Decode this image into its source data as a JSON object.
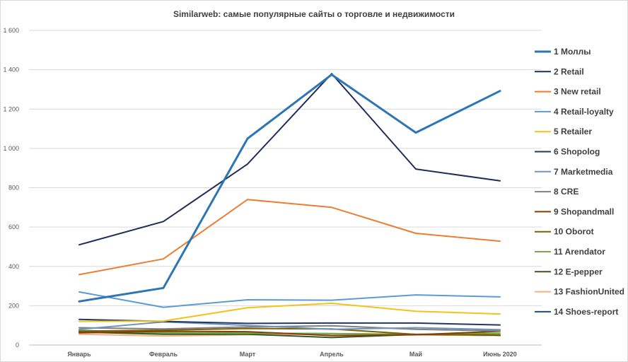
{
  "chart_data": {
    "type": "line",
    "title": "Similarweb: самые популярные сайты о торговле и недвижимости",
    "xlabel": "",
    "ylabel": "",
    "ylim": [
      0,
      1600
    ],
    "yticks": [
      0,
      200,
      400,
      600,
      800,
      1000,
      1200,
      1400,
      1600
    ],
    "ytick_labels": [
      "0",
      "200",
      "400",
      "600",
      "800",
      "1 000",
      "1 200",
      "1 400",
      "1 600"
    ],
    "categories": [
      "Январь",
      "Февраль",
      "Март",
      "Апрель",
      "Май",
      "Июнь 2020"
    ],
    "legend_position": "right",
    "grid": true,
    "series": [
      {
        "name": "1 Моллы",
        "color": "#2e75b6",
        "thick": true,
        "values": [
          222,
          290,
          1050,
          1375,
          1080,
          1292
        ]
      },
      {
        "name": "2 Retail",
        "color": "#1f2d5a",
        "thick": false,
        "values": [
          510,
          628,
          920,
          1380,
          895,
          835
        ]
      },
      {
        "name": "3 New retail",
        "color": "#ed7d31",
        "thick": false,
        "values": [
          358,
          438,
          740,
          700,
          568,
          528
        ]
      },
      {
        "name": "4 Retail-loyalty",
        "color": "#5b9bd5",
        "thick": false,
        "values": [
          270,
          192,
          230,
          228,
          255,
          245
        ]
      },
      {
        "name": "5 Retailer",
        "color": "#f2c318",
        "thick": false,
        "values": [
          120,
          122,
          190,
          212,
          172,
          158
        ]
      },
      {
        "name": "6 Shopolog",
        "color": "#203864",
        "thick": false,
        "values": [
          130,
          120,
          110,
          112,
          112,
          102
        ]
      },
      {
        "name": "7 Marketmedia",
        "color": "#6f95bd",
        "thick": false,
        "values": [
          80,
          118,
          100,
          80,
          88,
          78
        ]
      },
      {
        "name": "8 CRE",
        "color": "#7f7f7f",
        "thick": false,
        "values": [
          88,
          82,
          92,
          98,
          80,
          72
        ]
      },
      {
        "name": "9 Shopandmall",
        "color": "#843c0c",
        "thick": false,
        "values": [
          62,
          70,
          68,
          48,
          52,
          70
        ]
      },
      {
        "name": "10 Oborot",
        "color": "#7f6000",
        "thick": false,
        "values": [
          70,
          76,
          84,
          82,
          54,
          52
        ]
      },
      {
        "name": "11 Arendator",
        "color": "#70ad47",
        "thick": false,
        "values": [
          75,
          62,
          60,
          58,
          55,
          60
        ]
      },
      {
        "name": "12 E-pepper",
        "color": "#375623",
        "thick": false,
        "values": [
          66,
          55,
          55,
          38,
          54,
          50
        ]
      },
      {
        "name": "13 FashionUnited",
        "color": "#f4b183",
        "thick": false,
        "values": [
          55,
          46,
          52,
          56,
          52,
          48
        ]
      },
      {
        "name": "14 Shoes-report",
        "color": "#1f4e79",
        "thick": false,
        "values": [
          72,
          62,
          60,
          58,
          54,
          48
        ]
      }
    ]
  }
}
